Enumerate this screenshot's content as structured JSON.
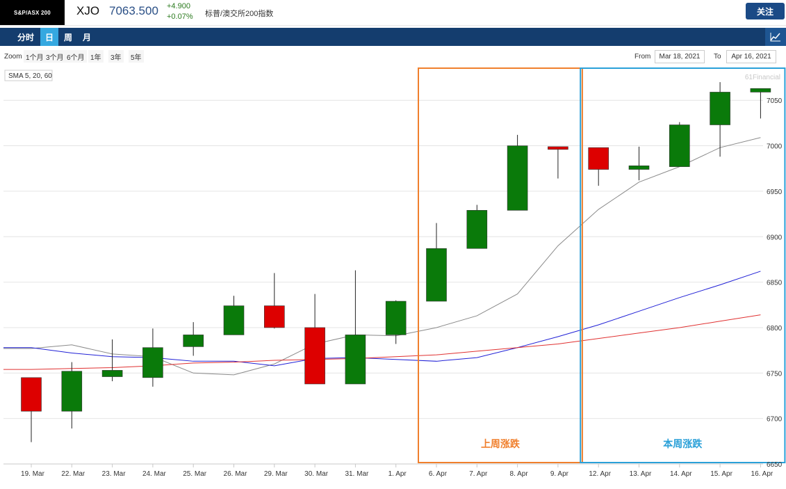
{
  "header": {
    "logo_text": "S&P/ASX 200",
    "ticker": "XJO",
    "price": "7063.500",
    "change": "+4.900",
    "change_pct": "+0.07%",
    "index_name": "标普/澳交所200指数",
    "follow_label": "关注"
  },
  "nav": {
    "tabs": [
      {
        "label": "分时",
        "active": false
      },
      {
        "label": "日",
        "active": true
      },
      {
        "label": "周",
        "active": false
      },
      {
        "label": "月",
        "active": false
      }
    ],
    "chart_icon": "chart-line-icon"
  },
  "zoom": {
    "label": "Zoom",
    "options": [
      "1个月",
      "3个月",
      "6个月",
      "1年",
      "3年",
      "5年"
    ],
    "from_label": "From",
    "from_value": "Mar 18, 2021",
    "to_label": "To",
    "to_value": "Apr 16, 2021"
  },
  "colors": {
    "up": "#0a7a0a",
    "down": "#dd0000",
    "sma5": "#8a8a8a",
    "sma20": "#1f1fd6",
    "sma60": "#e03030",
    "last_week_box": "#f07f2c",
    "this_week_box": "#2aa0d8"
  },
  "chart_data": {
    "type": "candlestick",
    "legend": "SMA 5, 20, 60",
    "credit": "61Financial",
    "ylim": [
      6650,
      7080
    ],
    "yticks": [
      6650,
      6700,
      6750,
      6800,
      6850,
      6900,
      6950,
      7000,
      7050
    ],
    "categories": [
      "19. Mar",
      "22. Mar",
      "23. Mar",
      "24. Mar",
      "25. Mar",
      "26. Mar",
      "29. Mar",
      "30. Mar",
      "31. Mar",
      "1. Apr",
      "6. Apr",
      "7. Apr",
      "8. Apr",
      "9. Apr",
      "12. Apr",
      "13. Apr",
      "14. Apr",
      "15. Apr",
      "16. Apr"
    ],
    "ohlc": [
      [
        6745,
        6745,
        6674,
        6708
      ],
      [
        6708,
        6762,
        6689,
        6752
      ],
      [
        6746,
        6787,
        6741,
        6753
      ],
      [
        6745,
        6799,
        6735,
        6778
      ],
      [
        6779,
        6806,
        6769,
        6792
      ],
      [
        6792,
        6835,
        6792,
        6824
      ],
      [
        6824,
        6860,
        6799,
        6800
      ],
      [
        6800,
        6837,
        6738,
        6738
      ],
      [
        6738,
        6863,
        6738,
        6792
      ],
      [
        6792,
        6830,
        6782,
        6829
      ],
      [
        6829,
        6915,
        6829,
        6887
      ],
      [
        6887,
        6935,
        6887,
        6929
      ],
      [
        6929,
        7012,
        6929,
        7000
      ],
      [
        6999,
        6999,
        6964,
        6996
      ],
      [
        6998,
        6998,
        6956,
        6974
      ],
      [
        6974,
        6999,
        6962,
        6978
      ],
      [
        6977,
        7026,
        6977,
        7023
      ],
      [
        7023,
        7070,
        6988,
        7059
      ],
      [
        7059,
        7063,
        7030,
        7063
      ]
    ],
    "sma5": [
      6777,
      6781,
      6771,
      6768,
      6750,
      6748,
      6760,
      6782,
      6792,
      6791,
      6800,
      6813,
      6837,
      6890,
      6930,
      6960,
      6977,
      6998,
      7009
    ],
    "sma20": [
      6778,
      6772,
      6768,
      6767,
      6763,
      6763,
      6758,
      6766,
      6767,
      6765,
      6763,
      6767,
      6778,
      6790,
      6803,
      6818,
      6833,
      6847,
      6862
    ],
    "sma60": [
      6754,
      6755,
      6756,
      6758,
      6761,
      6762,
      6764,
      6765,
      6766,
      6768,
      6770,
      6774,
      6778,
      6782,
      6788,
      6794,
      6800,
      6807,
      6814
    ],
    "annotations": [
      {
        "label": "上周涨跌",
        "from_index": 10,
        "to_index": 13,
        "color": "#f07f2c"
      },
      {
        "label": "本周涨跌",
        "from_index": 14,
        "to_index": 18,
        "color": "#2aa0d8"
      }
    ]
  }
}
